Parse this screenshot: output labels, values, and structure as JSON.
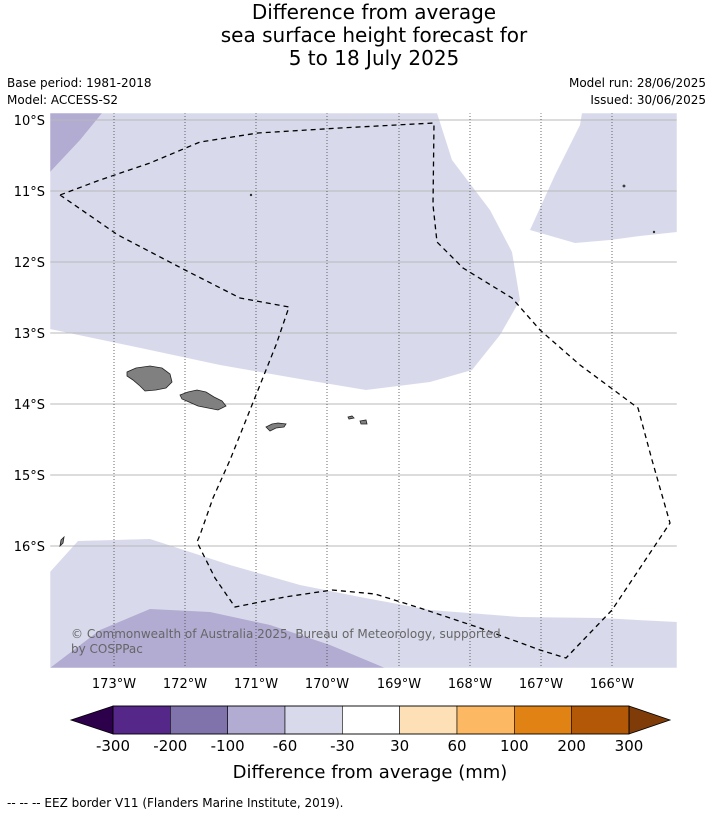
{
  "title_lines": [
    "Difference from average",
    "sea surface height forecast for",
    "5 to 18 July 2025"
  ],
  "base_period": "Base period: 1981-2018",
  "model": "Model: ACCESS-S2",
  "model_run": "Model run: 28/06/2025",
  "issued": "Issued: 30/06/2025",
  "copyright": [
    "© Commonwealth of Australia 2025, Bureau of Meteorology, supported",
    "by COSPPac"
  ],
  "lat_labels": [
    "10°S",
    "11°S",
    "12°S",
    "13°S",
    "14°S",
    "15°S",
    "16°S"
  ],
  "lon_labels": [
    "173°W",
    "172°W",
    "171°W",
    "170°W",
    "169°W",
    "168°W",
    "167°W",
    "166°W"
  ],
  "colorbar": {
    "ticks": [
      "-300",
      "-200",
      "-100",
      "-60",
      "-30",
      "30",
      "60",
      "100",
      "200",
      "300"
    ],
    "colors": [
      "#2d004b",
      "#542788",
      "#8073ac",
      "#b2abd2",
      "#d8daeb",
      "#ffffff",
      "#fee0b6",
      "#fdb863",
      "#e08214",
      "#b35806",
      "#7f3b08"
    ],
    "label": "Difference from average (mm)"
  },
  "footer": "--  --  -- EEZ border V11 (Flanders Marine Institute, 2019)."
}
